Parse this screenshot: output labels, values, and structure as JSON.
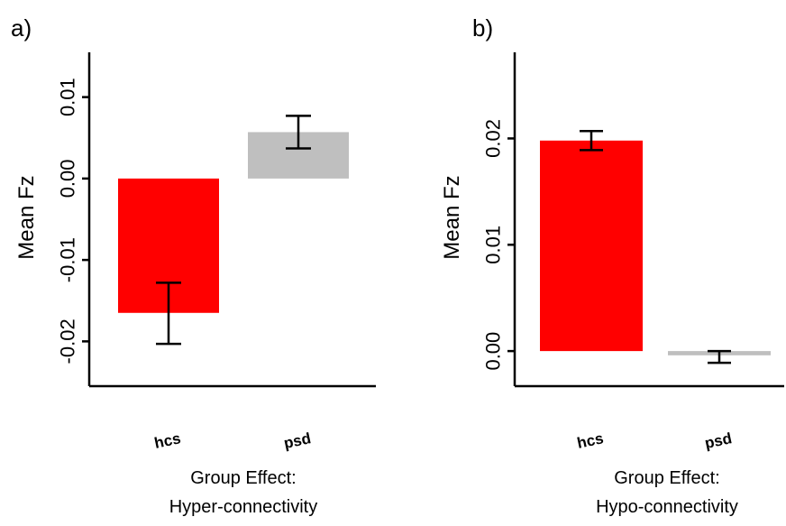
{
  "chart_data": [
    {
      "type": "bar",
      "panel_label": "a)",
      "categories": [
        "hcs",
        "psd"
      ],
      "values": [
        -0.0165,
        0.0057
      ],
      "error_low": [
        -0.0203,
        0.0037
      ],
      "error_high": [
        -0.0128,
        0.0077
      ],
      "colors": [
        "#ff0000",
        "#bfbfbf"
      ],
      "ylabel": "Mean Fz",
      "xlabel_lines": [
        "Group Effect:",
        "Hyper-connectivity"
      ],
      "yticks": [
        -0.02,
        -0.01,
        0.0,
        0.01
      ],
      "ytick_labels": [
        "-0.02",
        "-0.01",
        "0.00",
        "0.01"
      ],
      "ylim": [
        -0.0255,
        0.0155
      ]
    },
    {
      "type": "bar",
      "panel_label": "b)",
      "categories": [
        "hcs",
        "psd"
      ],
      "values": [
        0.0198,
        -0.0004
      ],
      "error_low": [
        0.0189,
        -0.0011
      ],
      "error_high": [
        0.0207,
        0.0
      ],
      "colors": [
        "#ff0000",
        "#bfbfbf"
      ],
      "ylabel": "Mean Fz",
      "xlabel_lines": [
        "Group Effect:",
        "Hypo-connectivity"
      ],
      "yticks": [
        0.0,
        0.01,
        0.02
      ],
      "ytick_labels": [
        "0.00",
        "0.01",
        "0.02"
      ],
      "ylim": [
        -0.0033,
        0.0281
      ]
    }
  ]
}
